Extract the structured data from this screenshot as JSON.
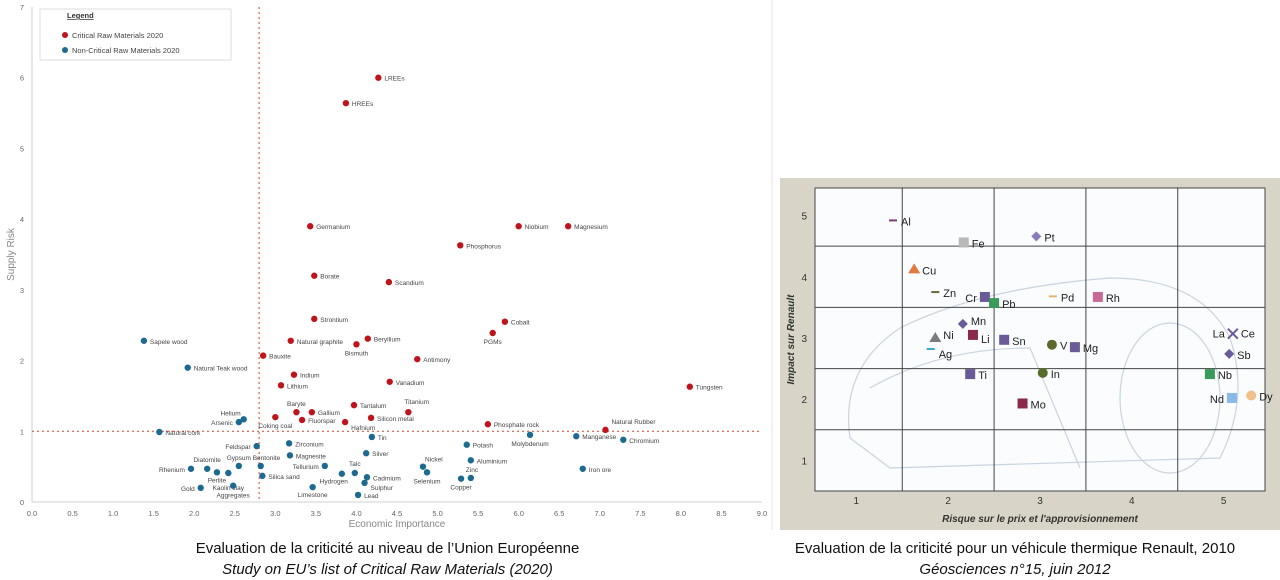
{
  "chart_data": [
    {
      "type": "scatter",
      "xlabel": "Economic Importance",
      "ylabel": "Supply Risk",
      "xlim": [
        0,
        9
      ],
      "ylim": [
        0,
        7
      ],
      "xticks": [
        "0.0",
        "0.5",
        "1.0",
        "1.5",
        "2.0",
        "2.5",
        "3.0",
        "3.5",
        "4.0",
        "4.5",
        "5.0",
        "5.5",
        "6.0",
        "6.5",
        "7.0",
        "7.5",
        "8.0",
        "8.5",
        "9.0"
      ],
      "yticks": [
        "0",
        "1",
        "2",
        "3",
        "4",
        "5",
        "6",
        "7"
      ],
      "thresholds": {
        "x": 2.8,
        "y": 1.0
      },
      "grid": false,
      "legend": {
        "title": "Legend",
        "placement": "top-left"
      },
      "series": [
        {
          "name": "Critical Raw Materials 2020",
          "color": "#c0141c",
          "points": [
            {
              "label": "LREEs",
              "x": 4.27,
              "y": 6.0
            },
            {
              "label": "HREEs",
              "x": 3.87,
              "y": 5.64
            },
            {
              "label": "Germanium",
              "x": 3.43,
              "y": 3.9
            },
            {
              "label": "Niobium",
              "x": 6.0,
              "y": 3.9
            },
            {
              "label": "Magnesium",
              "x": 6.61,
              "y": 3.9
            },
            {
              "label": "Phosphorus",
              "x": 5.28,
              "y": 3.63
            },
            {
              "label": "Borate",
              "x": 3.48,
              "y": 3.2
            },
            {
              "label": "Scandium",
              "x": 4.4,
              "y": 3.11
            },
            {
              "label": "Strontium",
              "x": 3.48,
              "y": 2.59
            },
            {
              "label": "Cobalt",
              "x": 5.83,
              "y": 2.55
            },
            {
              "label": "PGMs",
              "x": 5.68,
              "y": 2.39
            },
            {
              "label": "Natural graphite",
              "x": 3.19,
              "y": 2.28
            },
            {
              "label": "Beryllium",
              "x": 4.14,
              "y": 2.31
            },
            {
              "label": "Bismuth",
              "x": 4.0,
              "y": 2.23
            },
            {
              "label": "Antimony",
              "x": 4.75,
              "y": 2.02
            },
            {
              "label": "Bauxite",
              "x": 2.85,
              "y": 2.07
            },
            {
              "label": "Indium",
              "x": 3.23,
              "y": 1.8
            },
            {
              "label": "Vanadium",
              "x": 4.41,
              "y": 1.7
            },
            {
              "label": "Lithium",
              "x": 3.07,
              "y": 1.65
            },
            {
              "label": "Tungsten",
              "x": 8.11,
              "y": 1.63
            },
            {
              "label": "Tantalum",
              "x": 3.97,
              "y": 1.37
            },
            {
              "label": "Titanium",
              "x": 4.64,
              "y": 1.27
            },
            {
              "label": "Baryte",
              "x": 3.26,
              "y": 1.27
            },
            {
              "label": "Gallium",
              "x": 3.45,
              "y": 1.27
            },
            {
              "label": "Coking coal",
              "x": 3.0,
              "y": 1.2
            },
            {
              "label": "Fluorspar",
              "x": 3.33,
              "y": 1.16
            },
            {
              "label": "Hafnium",
              "x": 3.86,
              "y": 1.13
            },
            {
              "label": "Silicon metal",
              "x": 4.18,
              "y": 1.19
            },
            {
              "label": "Phosphate rock",
              "x": 5.62,
              "y": 1.1
            },
            {
              "label": "Natural Rubber",
              "x": 7.07,
              "y": 1.02
            }
          ]
        },
        {
          "name": "Non-Critical Raw Materials 2020",
          "color": "#1c6a8f",
          "points": [
            {
              "label": "Sapele wood",
              "x": 1.38,
              "y": 2.28
            },
            {
              "label": "Natural Teak wood",
              "x": 1.92,
              "y": 1.9
            },
            {
              "label": "Helium",
              "x": 2.61,
              "y": 1.17
            },
            {
              "label": "Arsenic",
              "x": 2.55,
              "y": 1.13
            },
            {
              "label": "Natural cork",
              "x": 1.57,
              "y": 0.99
            },
            {
              "label": "Feldspar",
              "x": 2.77,
              "y": 0.79
            },
            {
              "label": "Zirconium",
              "x": 3.17,
              "y": 0.83
            },
            {
              "label": "Tin",
              "x": 4.19,
              "y": 0.92
            },
            {
              "label": "Magnesite",
              "x": 3.18,
              "y": 0.66
            },
            {
              "label": "Silver",
              "x": 4.12,
              "y": 0.69
            },
            {
              "label": "Potash",
              "x": 5.36,
              "y": 0.81
            },
            {
              "label": "Molybdenum",
              "x": 6.14,
              "y": 0.95
            },
            {
              "label": "Manganese",
              "x": 6.71,
              "y": 0.93
            },
            {
              "label": "Chromium",
              "x": 7.29,
              "y": 0.88
            },
            {
              "label": "Rhenium",
              "x": 1.96,
              "y": 0.47
            },
            {
              "label": "Diatomite",
              "x": 2.16,
              "y": 0.47
            },
            {
              "label": "Perlite",
              "x": 2.28,
              "y": 0.42
            },
            {
              "label": "Kaolin clay",
              "x": 2.42,
              "y": 0.41
            },
            {
              "label": "Gypsum",
              "x": 2.55,
              "y": 0.51
            },
            {
              "label": "Gold",
              "x": 2.08,
              "y": 0.2
            },
            {
              "label": "Aggregates",
              "x": 2.48,
              "y": 0.23
            },
            {
              "label": "Bentonite",
              "x": 2.82,
              "y": 0.51
            },
            {
              "label": "Silica sand",
              "x": 2.84,
              "y": 0.37
            },
            {
              "label": "Tellurium",
              "x": 3.61,
              "y": 0.51
            },
            {
              "label": "Hydrogen",
              "x": 3.82,
              "y": 0.4
            },
            {
              "label": "Talc",
              "x": 3.98,
              "y": 0.41
            },
            {
              "label": "Cadmium",
              "x": 4.13,
              "y": 0.35
            },
            {
              "label": "Sulphur",
              "x": 4.1,
              "y": 0.27
            },
            {
              "label": "Limestone",
              "x": 3.46,
              "y": 0.21
            },
            {
              "label": "Lead",
              "x": 4.02,
              "y": 0.1
            },
            {
              "label": "Nickel",
              "x": 4.82,
              "y": 0.5
            },
            {
              "label": "Selenium",
              "x": 4.87,
              "y": 0.42
            },
            {
              "label": "Aluminium",
              "x": 5.41,
              "y": 0.59
            },
            {
              "label": "Zinc",
              "x": 5.41,
              "y": 0.34
            },
            {
              "label": "Copper",
              "x": 5.29,
              "y": 0.33
            },
            {
              "label": "Iron ore",
              "x": 6.79,
              "y": 0.47
            }
          ]
        }
      ]
    },
    {
      "type": "scatter",
      "xlabel": "Risque sur le prix et l'approvisionnement",
      "ylabel": "Impact sur Renault",
      "xlim": [
        0.55,
        5.45
      ],
      "ylim": [
        0.5,
        5.45
      ],
      "xticks": [
        "1",
        "2",
        "3",
        "4",
        "5"
      ],
      "yticks": [
        "1",
        "2",
        "3",
        "4",
        "5"
      ],
      "grid": true,
      "background_color": "#d9d4c8",
      "points": [
        {
          "label": "Al",
          "x": 1.4,
          "y": 4.92,
          "marker": "dash",
          "color": "#7a3d7a"
        },
        {
          "label": "Fe",
          "x": 2.17,
          "y": 4.56,
          "marker": "square",
          "color": "#b8b8b8"
        },
        {
          "label": "Pt",
          "x": 2.96,
          "y": 4.66,
          "marker": "diamond",
          "color": "#8a7ab8"
        },
        {
          "label": "Cu",
          "x": 1.63,
          "y": 4.12,
          "marker": "triangle",
          "color": "#e07840"
        },
        {
          "label": "Zn",
          "x": 1.86,
          "y": 3.75,
          "marker": "dash",
          "color": "#6a6a3a"
        },
        {
          "label": "Cr",
          "x": 2.4,
          "y": 3.67,
          "marker": "square",
          "color": "#6a5a98"
        },
        {
          "label": "Pb",
          "x": 2.5,
          "y": 3.57,
          "marker": "square",
          "color": "#3a9a5a"
        },
        {
          "label": "Pd",
          "x": 3.14,
          "y": 3.68,
          "marker": "dash",
          "color": "#e8b070"
        },
        {
          "label": "Rh",
          "x": 3.63,
          "y": 3.67,
          "marker": "square",
          "color": "#c86a98"
        },
        {
          "label": "Mn",
          "x": 2.16,
          "y": 3.23,
          "marker": "diamond",
          "color": "#6a5a98"
        },
        {
          "label": "Li",
          "x": 2.27,
          "y": 3.05,
          "marker": "square",
          "color": "#8a2a4a"
        },
        {
          "label": "Ni",
          "x": 1.86,
          "y": 3.0,
          "marker": "triangle",
          "color": "#7a7a80"
        },
        {
          "label": "Ag",
          "x": 1.81,
          "y": 2.82,
          "marker": "dash",
          "color": "#3aa8d8"
        },
        {
          "label": "Sn",
          "x": 2.61,
          "y": 2.97,
          "marker": "square",
          "color": "#6a5a98"
        },
        {
          "label": "V",
          "x": 3.13,
          "y": 2.89,
          "marker": "circle",
          "color": "#5a6a2a"
        },
        {
          "label": "Mg",
          "x": 3.38,
          "y": 2.85,
          "marker": "square",
          "color": "#6a5a98"
        },
        {
          "label": "Ti",
          "x": 2.24,
          "y": 2.41,
          "marker": "square",
          "color": "#6a5a98"
        },
        {
          "label": "In",
          "x": 3.03,
          "y": 2.43,
          "marker": "circle",
          "color": "#5a6a2a"
        },
        {
          "label": "Mo",
          "x": 2.81,
          "y": 1.93,
          "marker": "square",
          "color": "#8a2a4a"
        },
        {
          "label": "La",
          "label2": "Ce",
          "x": 5.1,
          "y": 3.07,
          "marker": "x",
          "color": "#6a5a98"
        },
        {
          "label": "Sb",
          "x": 5.06,
          "y": 2.74,
          "marker": "diamond",
          "color": "#6a5a98"
        },
        {
          "label": "Nb",
          "x": 4.85,
          "y": 2.41,
          "marker": "square",
          "color": "#3a9a5a"
        },
        {
          "label": "Nd",
          "x": 5.09,
          "y": 2.02,
          "marker": "square",
          "color": "#8ab8e8"
        },
        {
          "label": "Dy",
          "x": 5.3,
          "y": 2.06,
          "marker": "circle",
          "color": "#f0c08a"
        }
      ]
    }
  ],
  "captions": {
    "left": {
      "line1": "Evaluation de la criticité au niveau de l’Union Européenne",
      "line2": "Study on EU’s list  of Critical Raw Materials (2020)"
    },
    "right": {
      "line1": "Evaluation de la criticité pour un véhicule thermique Renault, 2010",
      "line2": "Géosciences n°15, juin 2012"
    }
  }
}
